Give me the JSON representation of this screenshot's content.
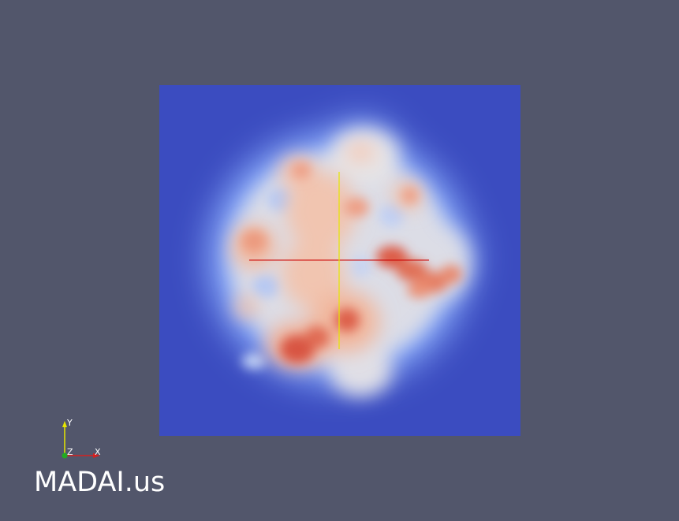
{
  "viewport": {
    "background_color": "#52566b"
  },
  "heatmap": {
    "colormap": [
      "#3b4cc0",
      "#8db0fe",
      "#dddddd",
      "#f4987a",
      "#d44136"
    ],
    "background_color": "#3b4cc0",
    "crosshair_horizontal_color": "#cc0000",
    "crosshair_vertical_color": "#e6e600"
  },
  "axes_triad": {
    "x_label": "X",
    "y_label": "Y",
    "z_label": "Z",
    "x_color": "#d42020",
    "y_color": "#e6e600",
    "z_color": "#22aa22"
  },
  "branding": {
    "text": "MADAI.us"
  }
}
